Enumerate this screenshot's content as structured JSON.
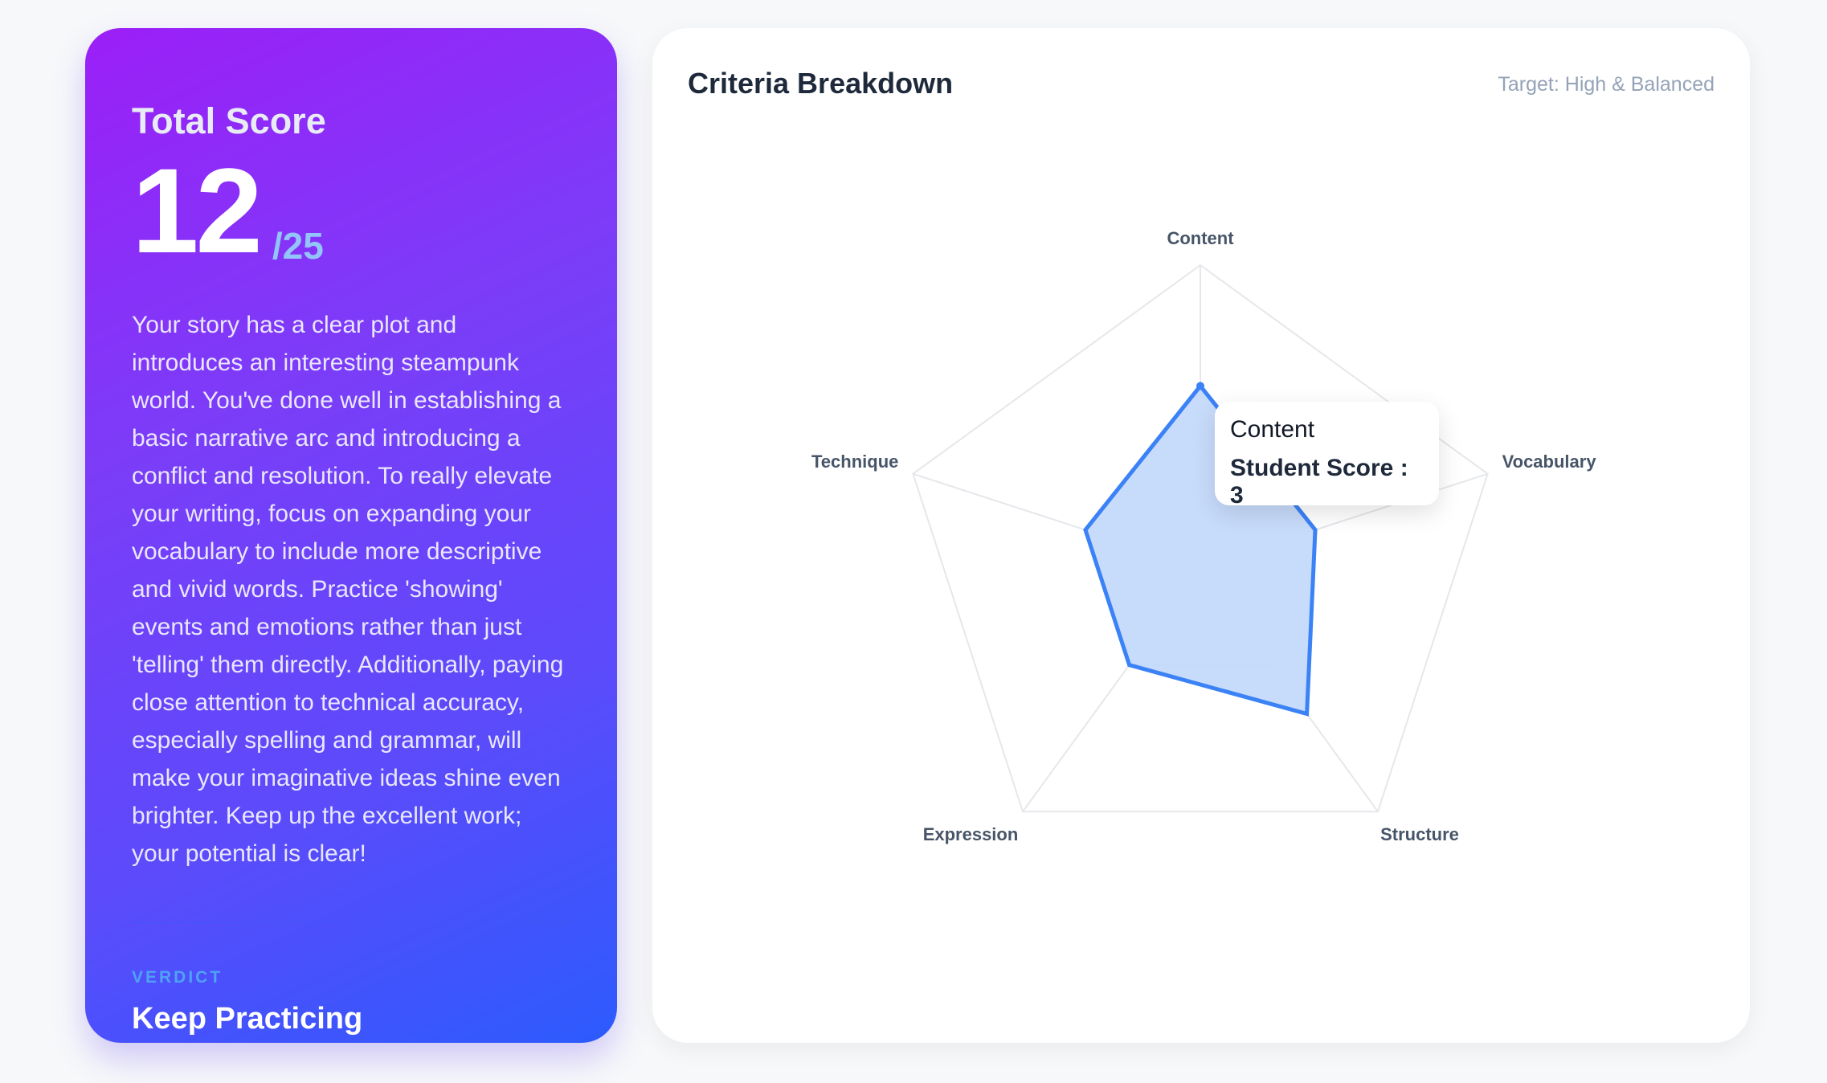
{
  "summary": {
    "title": "Total Score",
    "score": "12",
    "max": "/25",
    "feedback": "Your story has a clear plot and introduces an interesting steampunk world. You've done well in establishing a basic narrative arc and introducing a conflict and resolution. To really elevate your writing, focus on expanding your vocabulary to include more descriptive and vivid words. Practice 'showing' events and emotions rather than just 'telling' them directly. Additionally, paying close attention to technical accuracy, especially spelling and grammar, will make your imaginative ideas shine even brighter. Keep up the excellent work; your potential is clear!",
    "verdict_label": "VERDICT",
    "verdict": "Keep Practicing"
  },
  "panel": {
    "title": "Criteria Breakdown",
    "target": "Target: High & Balanced"
  },
  "tooltip": {
    "label": "Content",
    "value": "Student Score : 3"
  },
  "chart_data": {
    "type": "radar",
    "categories": [
      "Content",
      "Vocabulary",
      "Structure",
      "Expression",
      "Technique"
    ],
    "series": [
      {
        "name": "Student Score",
        "values": [
          3,
          2,
          3,
          2,
          2
        ],
        "color": "#3b82f6",
        "fill": "#c4d9fb"
      }
    ],
    "rlim": [
      0,
      5
    ],
    "grid": true
  }
}
